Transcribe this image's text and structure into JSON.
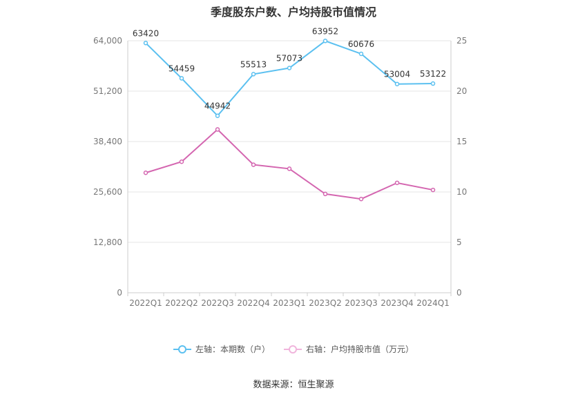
{
  "chart_data": {
    "type": "line",
    "title": "季度股东户数、户均持股市值情况",
    "categories": [
      "2022Q1",
      "2022Q2",
      "2022Q3",
      "2022Q4",
      "2023Q1",
      "2023Q2",
      "2023Q3",
      "2023Q4",
      "2024Q1"
    ],
    "series": [
      {
        "name": "左轴：本期数（户）",
        "axis": "left",
        "color": "#5bc0f0",
        "values": [
          63420,
          54459,
          44942,
          55513,
          57073,
          63952,
          60676,
          53004,
          53122
        ],
        "labels": [
          "63420",
          "54459",
          "44942",
          "55513",
          "57073",
          "63952",
          "60676",
          "53004",
          "53122"
        ]
      },
      {
        "name": "右轴：户均持股市值（万元）",
        "axis": "right",
        "color": "#d466b0",
        "values": [
          11.9,
          13.0,
          16.2,
          12.7,
          12.3,
          9.8,
          9.3,
          10.9,
          10.2
        ]
      }
    ],
    "left_axis": {
      "ylim": [
        0,
        64000
      ],
      "ticks": [
        "0",
        "12,800",
        "25,600",
        "38,400",
        "51,200",
        "64,000"
      ]
    },
    "right_axis": {
      "ylim": [
        0,
        25
      ],
      "ticks": [
        "0",
        "5",
        "10",
        "15",
        "20",
        "25"
      ]
    },
    "grid": true,
    "legend_position": "bottom"
  },
  "source": "数据来源：恒生聚源"
}
